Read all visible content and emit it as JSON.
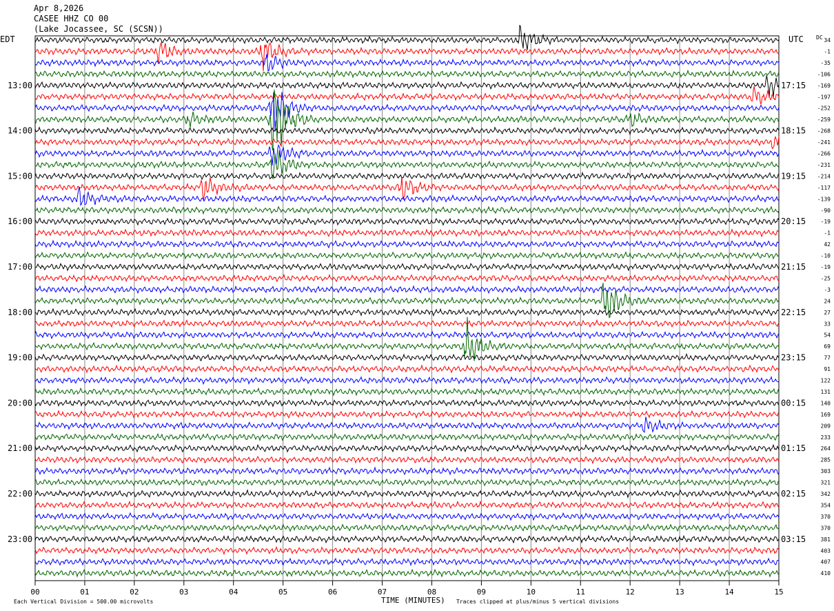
{
  "header": {
    "date": "Apr 8,2026",
    "station": "CASEE HHZ CO 00",
    "location": "(Lake Jocassee, SC (SCSN))"
  },
  "footer": {
    "division_note": "Each Vertical Division =  500.00 microvolts",
    "clip_note": "Traces clipped at plus/minus 5 vertical divisions"
  },
  "chart_data": {
    "type": "line",
    "subtype": "helicorder",
    "xlabel": "TIME (MINUTES)",
    "x_ticks": [
      "00",
      "01",
      "02",
      "03",
      "04",
      "05",
      "06",
      "07",
      "08",
      "09",
      "10",
      "11",
      "12",
      "13",
      "14",
      "15"
    ],
    "xlim": [
      0,
      15
    ],
    "left_label": "EDT",
    "right_label": "UTC",
    "dc_label": "DC",
    "trace_colors": [
      "#000000",
      "#ff0000",
      "#0000ff",
      "#006400"
    ],
    "edt_hours": [
      "13:00",
      "14:00",
      "15:00",
      "16:00",
      "17:00",
      "18:00",
      "19:00",
      "20:00",
      "21:00",
      "22:00",
      "23:00"
    ],
    "utc_hours": [
      "17:15",
      "18:15",
      "19:15",
      "20:15",
      "21:15",
      "22:15",
      "23:15",
      "00:15",
      "01:15",
      "02:15",
      "03:15"
    ],
    "dc_offsets": [
      34,
      -1,
      -35,
      -106,
      -169,
      -197,
      -252,
      -259,
      -268,
      -241,
      -266,
      -231,
      -214,
      -117,
      -139,
      -90,
      -19,
      -1,
      42,
      -10,
      -19,
      -25,
      -3,
      24,
      27,
      33,
      54,
      69,
      77,
      91,
      122,
      131,
      140,
      169,
      209,
      233,
      264,
      285,
      303,
      321,
      342,
      354,
      370,
      370,
      381,
      403,
      407,
      410
    ],
    "events": [
      {
        "trace": 0,
        "minute": 9.8,
        "amp": 1.6
      },
      {
        "trace": 1,
        "minute": 2.5,
        "amp": 1.2
      },
      {
        "trace": 1,
        "minute": 4.6,
        "amp": 1.6
      },
      {
        "trace": 2,
        "minute": 4.7,
        "amp": 0.9
      },
      {
        "trace": 4,
        "minute": 14.8,
        "amp": 1.2
      },
      {
        "trace": 5,
        "minute": 14.5,
        "amp": 1.0
      },
      {
        "trace": 6,
        "minute": 4.8,
        "amp": 3.0
      },
      {
        "trace": 7,
        "minute": 4.8,
        "amp": 5.0
      },
      {
        "trace": 7,
        "minute": 3.1,
        "amp": 0.8
      },
      {
        "trace": 7,
        "minute": 12.0,
        "amp": 0.7
      },
      {
        "trace": 9,
        "minute": 14.9,
        "amp": 0.8
      },
      {
        "trace": 10,
        "minute": 4.8,
        "amp": 1.6
      },
      {
        "trace": 11,
        "minute": 4.8,
        "amp": 1.8
      },
      {
        "trace": 13,
        "minute": 3.4,
        "amp": 1.4
      },
      {
        "trace": 13,
        "minute": 7.4,
        "amp": 1.4
      },
      {
        "trace": 14,
        "minute": 0.9,
        "amp": 1.1
      },
      {
        "trace": 23,
        "minute": 11.5,
        "amp": 3.0
      },
      {
        "trace": 27,
        "minute": 8.7,
        "amp": 2.5
      },
      {
        "trace": 34,
        "minute": 12.3,
        "amp": 0.8
      }
    ]
  }
}
